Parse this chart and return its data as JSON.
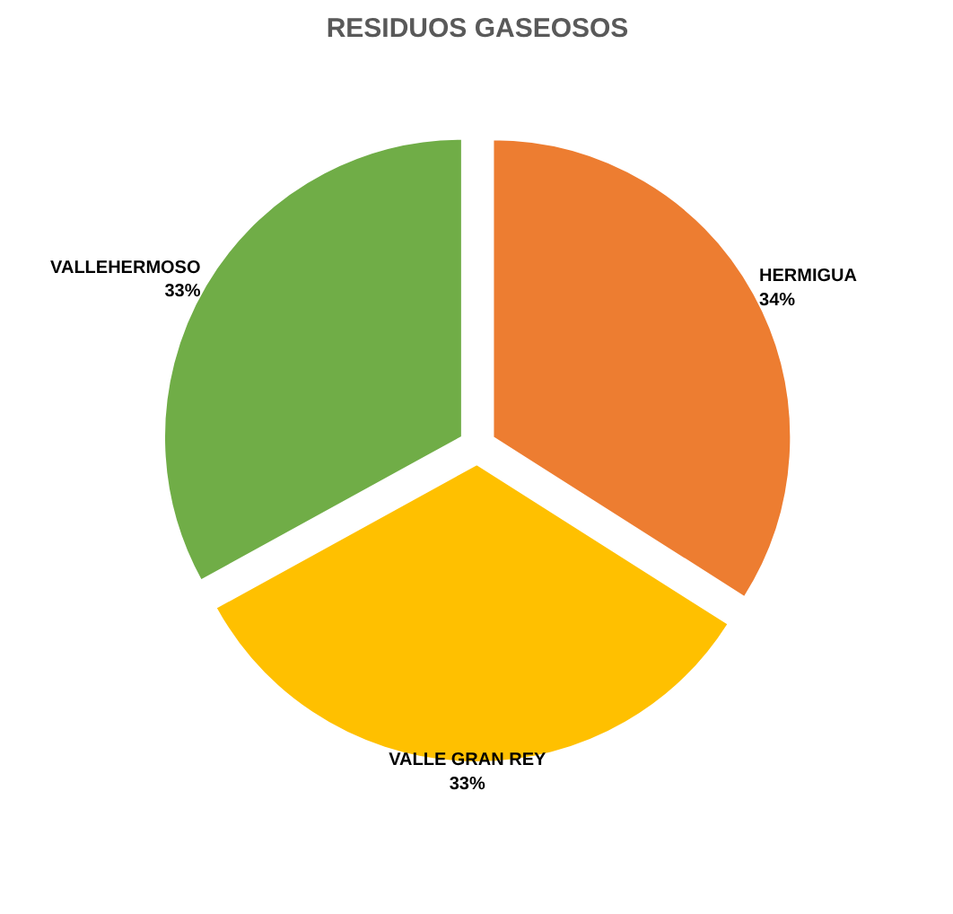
{
  "chart_data": {
    "type": "pie",
    "title": "RESIDUOS GASEOSOS",
    "categories": [
      "HERMIGUA",
      "VALLE GRAN REY",
      "VALLEHERMOSO"
    ],
    "values": [
      34,
      33,
      33
    ],
    "colors": [
      "#ed7d31",
      "#ffc000",
      "#70ad47"
    ],
    "value_labels": [
      "34%",
      "33%",
      "33%"
    ],
    "legend": false
  }
}
